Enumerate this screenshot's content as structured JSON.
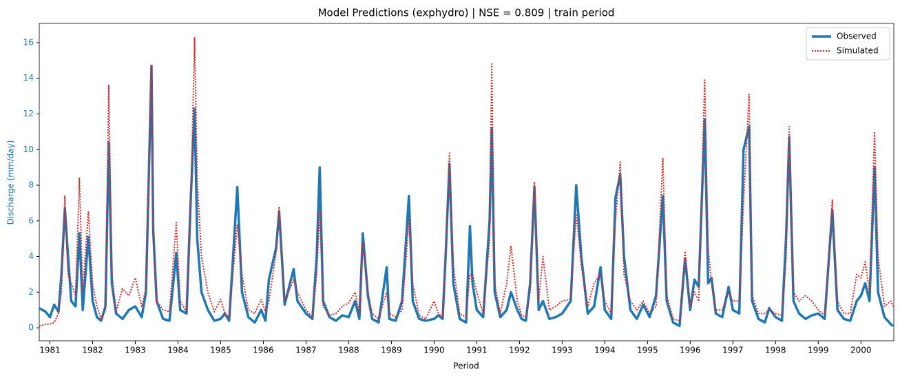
{
  "chart_data": {
    "type": "line",
    "title": "Model Predictions (exphydro) | NSE = 0.809 | train period",
    "xlabel": "Period",
    "ylabel": "Discharge (mm/day)",
    "xlim": [
      1980.75,
      2000.77
    ],
    "ylim": [
      -0.73,
      17.08
    ],
    "xticks": [
      1981,
      1982,
      1983,
      1984,
      1985,
      1986,
      1987,
      1988,
      1989,
      1990,
      1991,
      1992,
      1993,
      1994,
      1995,
      1996,
      1997,
      1998,
      1999,
      2000
    ],
    "yticks": [
      0,
      2,
      4,
      6,
      8,
      10,
      12,
      14,
      16
    ],
    "legend": "upper right",
    "x": [
      1980.75,
      1980.9,
      1981.0,
      1981.1,
      1981.2,
      1981.27,
      1981.35,
      1981.42,
      1981.5,
      1981.6,
      1981.69,
      1981.77,
      1981.9,
      1982.0,
      1982.1,
      1982.2,
      1982.3,
      1982.38,
      1982.45,
      1982.55,
      1982.7,
      1982.85,
      1983.0,
      1983.15,
      1983.25,
      1983.38,
      1983.42,
      1983.5,
      1983.65,
      1983.8,
      1983.96,
      1984.05,
      1984.2,
      1984.3,
      1984.39,
      1984.45,
      1984.55,
      1984.7,
      1984.85,
      1985.0,
      1985.1,
      1985.2,
      1985.39,
      1985.5,
      1985.65,
      1985.8,
      1985.95,
      1986.05,
      1986.13,
      1986.3,
      1986.37,
      1986.5,
      1986.71,
      1986.8,
      1987.0,
      1987.15,
      1987.25,
      1987.32,
      1987.4,
      1987.55,
      1987.7,
      1987.85,
      1988.0,
      1988.15,
      1988.25,
      1988.33,
      1988.45,
      1988.55,
      1988.7,
      1988.89,
      1988.95,
      1989.1,
      1989.25,
      1989.41,
      1989.5,
      1989.65,
      1989.8,
      1990.0,
      1990.1,
      1990.2,
      1990.27,
      1990.36,
      1990.45,
      1990.6,
      1990.75,
      1990.84,
      1990.9,
      1991.0,
      1991.15,
      1991.3,
      1991.35,
      1991.42,
      1991.55,
      1991.7,
      1991.8,
      1991.95,
      1992.05,
      1992.15,
      1992.25,
      1992.35,
      1992.45,
      1992.55,
      1992.7,
      1992.85,
      1993.0,
      1993.2,
      1993.33,
      1993.45,
      1993.6,
      1993.75,
      1993.9,
      1994.0,
      1994.15,
      1994.25,
      1994.36,
      1994.45,
      1994.6,
      1994.75,
      1994.9,
      1995.05,
      1995.2,
      1995.36,
      1995.45,
      1995.6,
      1995.75,
      1995.88,
      1996.0,
      1996.1,
      1996.2,
      1996.34,
      1996.42,
      1996.5,
      1996.6,
      1996.75,
      1996.9,
      1997.0,
      1997.15,
      1997.25,
      1997.38,
      1997.45,
      1997.6,
      1997.75,
      1997.85,
      1998.0,
      1998.15,
      1998.25,
      1998.32,
      1998.42,
      1998.55,
      1998.7,
      1998.85,
      1999.0,
      1999.15,
      1999.33,
      1999.45,
      1999.6,
      1999.75,
      1999.9,
      2000.0,
      2000.1,
      2000.2,
      2000.32,
      2000.4,
      2000.55,
      2000.7,
      2000.75
    ],
    "series": [
      {
        "name": "Observed",
        "color": "#1f77b4",
        "values": [
          1.1,
          0.9,
          0.6,
          1.3,
          0.9,
          3.0,
          6.7,
          4.2,
          1.5,
          1.2,
          5.3,
          1.0,
          5.1,
          1.5,
          0.6,
          0.4,
          1.2,
          10.4,
          2.5,
          0.8,
          0.5,
          1.0,
          1.2,
          0.6,
          2.0,
          14.7,
          5.5,
          1.5,
          0.5,
          0.4,
          4.2,
          1.0,
          0.8,
          7.3,
          12.3,
          5.0,
          2.0,
          1.0,
          0.4,
          0.5,
          0.8,
          0.4,
          7.9,
          2.0,
          0.6,
          0.3,
          1.0,
          0.4,
          2.7,
          4.5,
          6.5,
          1.3,
          3.3,
          1.5,
          0.8,
          0.5,
          4.0,
          9.0,
          1.5,
          0.6,
          0.4,
          0.7,
          0.6,
          1.5,
          0.5,
          5.3,
          1.8,
          0.5,
          0.3,
          3.4,
          0.5,
          0.4,
          1.5,
          7.4,
          1.5,
          0.5,
          0.4,
          0.5,
          0.7,
          0.5,
          4.0,
          9.2,
          2.5,
          0.5,
          0.3,
          5.7,
          2.5,
          1.0,
          0.6,
          6.0,
          11.2,
          2.0,
          0.6,
          1.0,
          2.0,
          1.0,
          0.5,
          0.4,
          2.5,
          7.9,
          1.0,
          1.5,
          0.5,
          0.6,
          0.8,
          1.5,
          8.0,
          4.0,
          0.8,
          1.2,
          3.4,
          1.0,
          0.5,
          7.3,
          8.6,
          4.0,
          1.0,
          0.5,
          1.3,
          0.6,
          1.8,
          7.4,
          1.5,
          0.3,
          0.1,
          3.9,
          1.0,
          2.7,
          2.3,
          11.7,
          2.5,
          2.8,
          0.8,
          0.6,
          2.3,
          1.0,
          0.8,
          10.0,
          11.3,
          1.5,
          0.5,
          0.3,
          1.1,
          0.6,
          0.4,
          5.3,
          10.7,
          1.5,
          0.8,
          0.5,
          0.7,
          0.8,
          0.5,
          6.6,
          1.0,
          0.5,
          0.4,
          1.5,
          1.8,
          2.5,
          1.5,
          9.0,
          2.0,
          0.6,
          0.2,
          0.1
        ]
      },
      {
        "name": "Simulated",
        "color": "#d62728",
        "values": [
          0.1,
          0.2,
          0.2,
          0.3,
          0.8,
          2.0,
          7.4,
          3.0,
          2.5,
          1.8,
          8.4,
          2.0,
          6.5,
          2.5,
          1.2,
          0.5,
          1.0,
          13.6,
          3.0,
          0.9,
          2.2,
          1.8,
          2.8,
          1.2,
          2.2,
          14.7,
          5.0,
          1.5,
          1.0,
          0.9,
          5.9,
          1.5,
          0.9,
          7.0,
          16.3,
          8.3,
          4.0,
          2.0,
          0.9,
          1.6,
          0.8,
          0.6,
          5.8,
          3.0,
          1.0,
          0.8,
          1.6,
          0.9,
          1.5,
          4.2,
          6.8,
          1.5,
          2.7,
          2.0,
          1.0,
          0.6,
          3.0,
          6.6,
          1.2,
          0.7,
          0.8,
          1.2,
          1.4,
          2.0,
          0.8,
          4.8,
          2.0,
          0.8,
          0.5,
          2.0,
          0.8,
          0.6,
          1.0,
          6.0,
          2.5,
          0.7,
          0.5,
          1.5,
          0.8,
          0.6,
          3.5,
          9.8,
          3.5,
          0.8,
          0.6,
          3.0,
          3.0,
          2.0,
          0.8,
          5.0,
          14.8,
          2.5,
          0.8,
          2.5,
          4.6,
          1.5,
          0.7,
          0.6,
          2.0,
          8.2,
          1.5,
          4.0,
          1.0,
          1.2,
          1.5,
          1.6,
          6.4,
          3.5,
          1.2,
          2.5,
          3.0,
          1.5,
          0.8,
          6.0,
          9.3,
          3.0,
          1.5,
          1.0,
          1.5,
          0.8,
          1.2,
          9.5,
          1.8,
          0.5,
          0.4,
          4.3,
          1.2,
          2.0,
          1.5,
          13.9,
          4.5,
          2.5,
          1.0,
          1.0,
          2.0,
          1.5,
          1.5,
          7.0,
          13.1,
          1.8,
          0.8,
          0.8,
          1.0,
          0.8,
          0.7,
          4.0,
          11.3,
          2.0,
          1.5,
          1.8,
          1.5,
          1.0,
          0.7,
          7.2,
          1.5,
          0.8,
          0.8,
          3.0,
          2.8,
          3.7,
          2.0,
          11.0,
          4.0,
          1.2,
          1.5,
          1.2
        ]
      }
    ]
  }
}
